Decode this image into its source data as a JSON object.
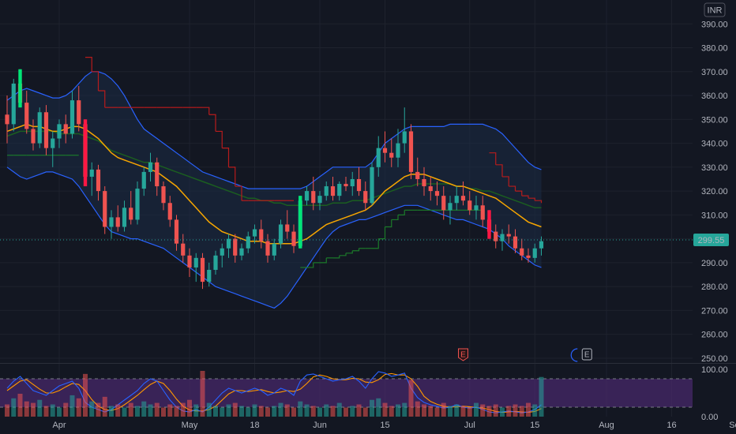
{
  "currency": "INR",
  "last_price_label": "299.55",
  "colors": {
    "background": "#131722",
    "grid": "#1e222d",
    "up": "#26a69a",
    "down": "#ef5350",
    "bb_line": "#2962ff",
    "bb_fill": "#1c2b45",
    "ma_fast": "#f7a600",
    "ma_slow": "#1b5e20",
    "supertrend_up": "#1b7a2a",
    "supertrend_down": "#b71c1c",
    "signal_up": "#00e676",
    "signal_down": "#ff1744",
    "rsi_band": "#4a2a6e",
    "stoch_k": "#2962ff",
    "stoch_d": "#ff9800",
    "earnings_past": "#ef5350",
    "earnings_next": "#b2b5be",
    "last_price": "#26a69a"
  },
  "earnings_markers": [
    {
      "label": "E",
      "date_index": 70,
      "kind": "past"
    },
    {
      "label": "E",
      "date_index": 89,
      "kind": "next"
    }
  ],
  "chart_data": {
    "type": "candlestick",
    "y_ticks": [
      250,
      260,
      270,
      280,
      290,
      300,
      310,
      320,
      330,
      340,
      350,
      360,
      370,
      380,
      390
    ],
    "y_tick_labels": [
      "250.00",
      "260.00",
      "270.00",
      "280.00",
      "290.00",
      "300.00",
      "310.00",
      "320.00",
      "330.00",
      "340.00",
      "350.00",
      "360.00",
      "370.00",
      "380.00",
      "390.00"
    ],
    "ylim": [
      248,
      400
    ],
    "x_ticks": [
      {
        "label": "Apr",
        "index": 8
      },
      {
        "label": "May",
        "index": 28
      },
      {
        "label": "18",
        "index": 38
      },
      {
        "label": "Jun",
        "index": 48
      },
      {
        "label": "15",
        "index": 58
      },
      {
        "label": "Jul",
        "index": 71
      },
      {
        "label": "15",
        "index": 81
      },
      {
        "label": "Aug",
        "index": 92
      },
      {
        "label": "16",
        "index": 102
      },
      {
        "label": "Sep",
        "index": 112
      }
    ],
    "candles": [
      [
        352,
        360,
        340,
        348
      ],
      [
        348,
        367,
        345,
        365
      ],
      [
        365,
        371,
        355,
        357
      ],
      [
        357,
        362,
        344,
        346
      ],
      [
        346,
        350,
        337,
        340
      ],
      [
        340,
        355,
        338,
        353
      ],
      [
        353,
        356,
        335,
        338
      ],
      [
        338,
        345,
        330,
        342
      ],
      [
        342,
        350,
        338,
        348
      ],
      [
        348,
        352,
        340,
        344
      ],
      [
        344,
        362,
        342,
        358
      ],
      [
        358,
        364,
        345,
        348
      ],
      [
        348,
        350,
        322,
        326
      ],
      [
        326,
        332,
        318,
        329
      ],
      [
        329,
        331,
        316,
        320
      ],
      [
        320,
        322,
        302,
        305
      ],
      [
        305,
        312,
        300,
        309
      ],
      [
        309,
        314,
        303,
        305
      ],
      [
        305,
        316,
        303,
        313
      ],
      [
        313,
        320,
        306,
        308
      ],
      [
        308,
        324,
        306,
        321
      ],
      [
        321,
        330,
        318,
        328
      ],
      [
        328,
        336,
        324,
        332
      ],
      [
        332,
        334,
        318,
        322
      ],
      [
        322,
        324,
        312,
        315
      ],
      [
        315,
        318,
        305,
        308
      ],
      [
        308,
        310,
        295,
        298
      ],
      [
        298,
        302,
        290,
        293
      ],
      [
        293,
        296,
        284,
        288
      ],
      [
        288,
        294,
        282,
        292
      ],
      [
        292,
        294,
        279,
        282
      ],
      [
        282,
        290,
        280,
        287
      ],
      [
        287,
        295,
        285,
        293
      ],
      [
        293,
        298,
        288,
        296
      ],
      [
        296,
        302,
        292,
        300
      ],
      [
        300,
        302,
        290,
        293
      ],
      [
        293,
        298,
        291,
        296
      ],
      [
        296,
        303,
        294,
        301
      ],
      [
        301,
        306,
        298,
        304
      ],
      [
        304,
        308,
        296,
        299
      ],
      [
        299,
        302,
        290,
        293
      ],
      [
        293,
        300,
        291,
        298
      ],
      [
        298,
        308,
        296,
        306
      ],
      [
        306,
        312,
        300,
        303
      ],
      [
        303,
        306,
        294,
        297
      ],
      [
        297,
        318,
        296,
        316
      ],
      [
        316,
        322,
        314,
        320
      ],
      [
        320,
        326,
        312,
        315
      ],
      [
        315,
        320,
        312,
        318
      ],
      [
        318,
        324,
        316,
        322
      ],
      [
        322,
        326,
        316,
        318
      ],
      [
        318,
        324,
        316,
        323
      ],
      [
        323,
        326,
        320,
        322
      ],
      [
        322,
        328,
        318,
        325
      ],
      [
        325,
        330,
        318,
        320
      ],
      [
        320,
        324,
        312,
        315
      ],
      [
        315,
        332,
        314,
        330
      ],
      [
        330,
        343,
        326,
        338
      ],
      [
        338,
        345,
        332,
        336
      ],
      [
        336,
        342,
        330,
        334
      ],
      [
        334,
        346,
        330,
        340
      ],
      [
        340,
        355,
        336,
        345
      ],
      [
        345,
        348,
        325,
        328
      ],
      [
        328,
        334,
        322,
        325
      ],
      [
        325,
        330,
        318,
        322
      ],
      [
        322,
        326,
        316,
        320
      ],
      [
        320,
        324,
        314,
        318
      ],
      [
        318,
        322,
        308,
        312
      ],
      [
        312,
        318,
        306,
        315
      ],
      [
        315,
        322,
        312,
        318
      ],
      [
        318,
        324,
        314,
        316
      ],
      [
        316,
        320,
        310,
        312
      ],
      [
        312,
        318,
        308,
        314
      ],
      [
        314,
        318,
        305,
        308
      ],
      [
        308,
        312,
        300,
        303
      ],
      [
        303,
        306,
        296,
        299
      ],
      [
        299,
        304,
        295,
        302
      ],
      [
        302,
        306,
        298,
        301
      ],
      [
        301,
        304,
        294,
        296
      ],
      [
        296,
        300,
        291,
        293
      ],
      [
        293,
        296,
        290,
        292
      ],
      [
        292,
        298,
        290,
        296
      ],
      [
        296,
        301,
        293,
        299
      ]
    ],
    "volume": [
      8,
      12,
      15,
      10,
      9,
      11,
      7,
      8,
      6,
      9,
      14,
      12,
      28,
      10,
      9,
      13,
      7,
      8,
      6,
      9,
      7,
      10,
      8,
      9,
      6,
      8,
      7,
      9,
      11,
      8,
      30,
      9,
      7,
      6,
      8,
      9,
      7,
      6,
      8,
      7,
      6,
      7,
      9,
      8,
      6,
      10,
      8,
      7,
      6,
      8,
      7,
      9,
      6,
      7,
      8,
      6,
      11,
      12,
      9,
      7,
      8,
      9,
      24,
      10,
      8,
      7,
      6,
      9,
      7,
      8,
      7,
      6,
      9,
      8,
      7,
      8,
      6,
      7,
      8,
      7,
      9,
      8,
      26
    ],
    "bb_upper": [
      358,
      360,
      362,
      363,
      362,
      361,
      360,
      359,
      359,
      360,
      362,
      365,
      368,
      370,
      370,
      369,
      367,
      364,
      360,
      355,
      350,
      346,
      344,
      342,
      340,
      338,
      336,
      334,
      332,
      330,
      328,
      327,
      326,
      325,
      324,
      323,
      322,
      321,
      321,
      321,
      321,
      321,
      321,
      321,
      321,
      321,
      322,
      324,
      326,
      328,
      330,
      330,
      330,
      330,
      330,
      330,
      332,
      336,
      340,
      342,
      344,
      346,
      347,
      347,
      347,
      347,
      347,
      347,
      348,
      348,
      348,
      348,
      348,
      348,
      347,
      346,
      344,
      341,
      338,
      335,
      332,
      330,
      329
    ],
    "bb_lower": [
      330,
      328,
      326,
      325,
      326,
      327,
      328,
      328,
      327,
      326,
      325,
      322,
      318,
      314,
      310,
      306,
      303,
      302,
      301,
      300,
      300,
      299,
      298,
      297,
      296,
      294,
      292,
      290,
      288,
      286,
      284,
      282,
      280,
      279,
      278,
      277,
      276,
      275,
      274,
      273,
      272,
      271,
      273,
      276,
      280,
      284,
      288,
      292,
      296,
      300,
      303,
      305,
      306,
      307,
      308,
      308,
      309,
      310,
      311,
      312,
      313,
      314,
      314,
      314,
      313,
      312,
      311,
      310,
      309,
      308,
      308,
      307,
      306,
      305,
      304,
      302,
      300,
      297,
      295,
      293,
      291,
      289,
      288
    ],
    "ma_fast": [
      345,
      346,
      347,
      348,
      347,
      347,
      346,
      345,
      345,
      346,
      347,
      347,
      346,
      344,
      342,
      339,
      336,
      334,
      333,
      332,
      331,
      330,
      329,
      328,
      326,
      324,
      322,
      319,
      316,
      313,
      310,
      307,
      305,
      303,
      302,
      301,
      300,
      299,
      299,
      299,
      298,
      298,
      298,
      298,
      298,
      299,
      300,
      302,
      304,
      306,
      307,
      308,
      309,
      310,
      311,
      312,
      314,
      317,
      320,
      322,
      324,
      326,
      327,
      327,
      327,
      326,
      325,
      324,
      323,
      322,
      322,
      321,
      320,
      319,
      318,
      317,
      315,
      313,
      311,
      309,
      307,
      306,
      305
    ],
    "ma_slow": [
      343,
      344,
      345,
      345,
      345,
      345,
      345,
      345,
      344,
      344,
      344,
      344,
      343,
      342,
      341,
      339,
      337,
      336,
      335,
      334,
      333,
      332,
      332,
      331,
      330,
      329,
      328,
      327,
      326,
      325,
      324,
      323,
      322,
      321,
      320,
      319,
      318,
      317,
      317,
      316,
      316,
      315,
      315,
      314,
      314,
      314,
      314,
      314,
      314,
      314,
      315,
      315,
      315,
      316,
      316,
      316,
      317,
      318,
      319,
      320,
      321,
      322,
      322,
      323,
      323,
      323,
      323,
      323,
      323,
      322,
      322,
      321,
      321,
      320,
      320,
      319,
      318,
      317,
      316,
      315,
      314,
      313,
      313
    ],
    "supertrend": [
      335,
      335,
      335,
      335,
      335,
      335,
      335,
      335,
      335,
      335,
      335,
      335,
      376,
      370,
      362,
      355,
      355,
      355,
      355,
      355,
      355,
      355,
      355,
      355,
      355,
      355,
      355,
      355,
      355,
      355,
      355,
      352,
      345,
      338,
      330,
      322,
      316,
      316,
      316,
      316,
      316,
      316,
      316,
      316,
      316,
      288,
      288,
      290,
      290,
      292,
      292,
      293,
      294,
      295,
      296,
      296,
      296,
      300,
      305,
      308,
      310,
      312,
      312,
      312,
      312,
      312,
      312,
      312,
      312,
      312,
      312,
      312,
      312,
      312,
      336,
      331,
      326,
      322,
      320,
      318,
      317,
      316,
      315
    ],
    "supertrend_dir": [
      1,
      1,
      1,
      1,
      1,
      1,
      1,
      1,
      1,
      1,
      1,
      1,
      -1,
      -1,
      -1,
      -1,
      -1,
      -1,
      -1,
      -1,
      -1,
      -1,
      -1,
      -1,
      -1,
      -1,
      -1,
      -1,
      -1,
      -1,
      -1,
      -1,
      -1,
      -1,
      -1,
      -1,
      -1,
      -1,
      -1,
      -1,
      -1,
      -1,
      -1,
      -1,
      -1,
      1,
      1,
      1,
      1,
      1,
      1,
      1,
      1,
      1,
      1,
      1,
      1,
      1,
      1,
      1,
      1,
      1,
      1,
      1,
      1,
      1,
      1,
      1,
      1,
      1,
      1,
      1,
      1,
      1,
      -1,
      -1,
      -1,
      -1,
      -1,
      -1,
      -1,
      -1,
      -1
    ],
    "oscillator_k": [
      60,
      75,
      85,
      70,
      55,
      50,
      45,
      55,
      65,
      70,
      75,
      60,
      30,
      20,
      15,
      10,
      15,
      25,
      35,
      45,
      55,
      70,
      80,
      75,
      55,
      35,
      20,
      12,
      10,
      15,
      10,
      20,
      35,
      50,
      60,
      55,
      50,
      55,
      60,
      55,
      45,
      50,
      60,
      55,
      45,
      75,
      88,
      90,
      85,
      80,
      75,
      78,
      80,
      85,
      75,
      60,
      80,
      95,
      92,
      85,
      88,
      92,
      60,
      40,
      30,
      25,
      22,
      18,
      20,
      25,
      20,
      18,
      20,
      15,
      10,
      8,
      10,
      12,
      10,
      8,
      10,
      15,
      25
    ],
    "oscillator_d": [
      55,
      65,
      75,
      78,
      68,
      58,
      50,
      50,
      55,
      63,
      70,
      68,
      55,
      36,
      22,
      15,
      13,
      17,
      25,
      35,
      45,
      57,
      68,
      75,
      70,
      55,
      37,
      22,
      14,
      12,
      12,
      15,
      22,
      35,
      48,
      55,
      55,
      53,
      55,
      57,
      53,
      50,
      52,
      55,
      53,
      58,
      70,
      84,
      88,
      85,
      80,
      78,
      78,
      81,
      80,
      73,
      72,
      78,
      89,
      91,
      88,
      88,
      80,
      64,
      43,
      32,
      26,
      22,
      20,
      21,
      22,
      21,
      19,
      18,
      15,
      11,
      9,
      10,
      11,
      10,
      9,
      11,
      17
    ],
    "oscillator_ticks": [
      {
        "value": 100,
        "label": "100.00"
      },
      {
        "value": 0,
        "label": "0.00"
      }
    ],
    "oscillator_band": [
      20,
      80
    ],
    "signals": [
      {
        "index": 2,
        "direction": "up"
      },
      {
        "index": 12,
        "direction": "down"
      },
      {
        "index": 45,
        "direction": "up"
      },
      {
        "index": 74,
        "direction": "down"
      }
    ],
    "last_price": 299.55
  }
}
